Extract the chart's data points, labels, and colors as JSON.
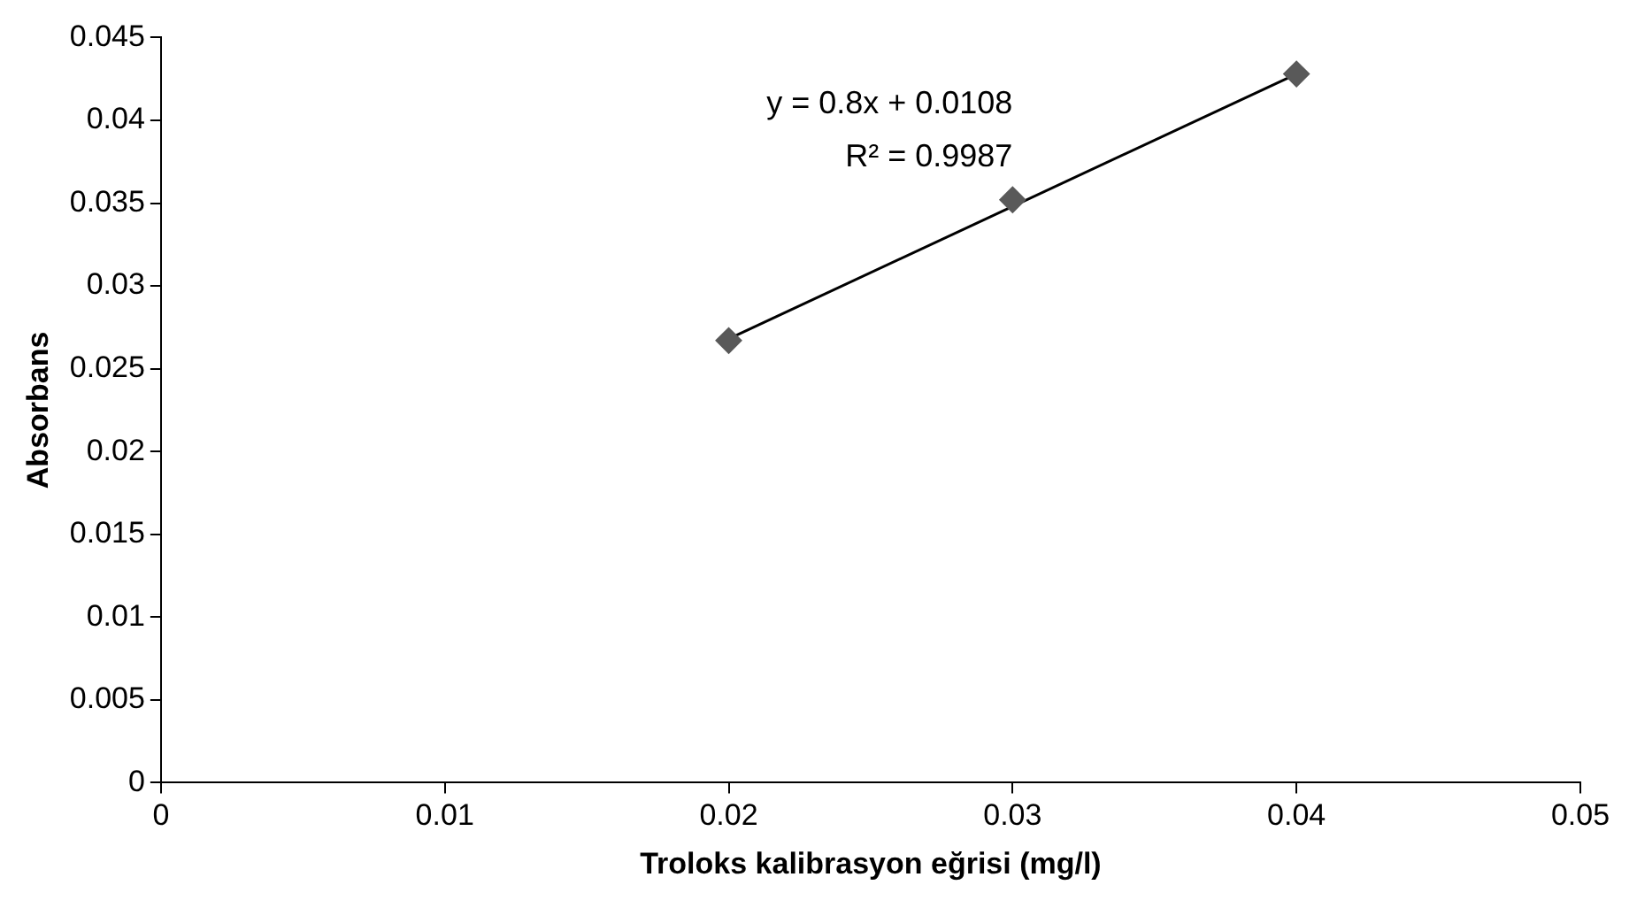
{
  "chart_data": {
    "type": "scatter",
    "xlabel": "Troloks kalibrasyon eğrisi (mg/l)",
    "ylabel": "Absorbans",
    "xlim": [
      0,
      0.05
    ],
    "xticks": [
      0,
      0.01,
      0.02,
      0.03,
      0.04,
      0.05
    ],
    "ylim": [
      0,
      0.045
    ],
    "yticks": [
      0,
      0.005,
      0.01,
      0.015,
      0.02,
      0.025,
      0.03,
      0.035,
      0.04,
      0.045
    ],
    "grid": false,
    "legend": false,
    "marker": "diamond",
    "series": [
      {
        "color": "#595959",
        "x": [
          0.02,
          0.03,
          0.04
        ],
        "values": [
          0.0267,
          0.0352,
          0.0428
        ]
      },
      {
        "type": "line",
        "color": "#000000",
        "marker": "none",
        "x": [
          0.02,
          0.04
        ],
        "values": [
          0.0268,
          0.0428
        ]
      }
    ],
    "annotations": [
      "y = 0.8x + 0.0108",
      "R² = 0.9987"
    ]
  }
}
